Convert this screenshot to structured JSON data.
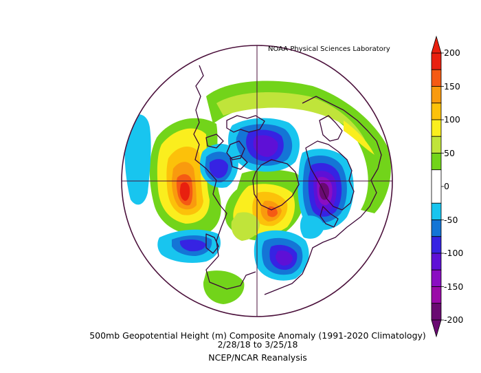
{
  "credit": "NOAA Physical Sciences Laboratory",
  "caption": {
    "line1": "500mb Geopotential Height (m) Composite Anomaly (1991-2020 Climatology)",
    "line2": "2/28/18   to 3/25/18",
    "line3": "NCEP/NCAR Reanalysis"
  },
  "colorbar": {
    "labels": [
      "200",
      "150",
      "100",
      "50",
      "0",
      "-50",
      "-100",
      "-150",
      "-200"
    ],
    "bins": [
      {
        "range": [
          175,
          200
        ],
        "color": "#e8200f"
      },
      {
        "range": [
          150,
          175
        ],
        "color": "#f55a14"
      },
      {
        "range": [
          125,
          150
        ],
        "color": "#f99a0e"
      },
      {
        "range": [
          100,
          125
        ],
        "color": "#fcc10a"
      },
      {
        "range": [
          75,
          100
        ],
        "color": "#faee1e"
      },
      {
        "range": [
          50,
          75
        ],
        "color": "#c0e43a"
      },
      {
        "range": [
          25,
          50
        ],
        "color": "#72d41a"
      },
      {
        "range": [
          -25,
          25
        ],
        "color": "#ffffff"
      },
      {
        "range": [
          -50,
          -25
        ],
        "color": "#18c5ef"
      },
      {
        "range": [
          -75,
          -50
        ],
        "color": "#1475d6"
      },
      {
        "range": [
          -100,
          -75
        ],
        "color": "#3623e3"
      },
      {
        "range": [
          -125,
          -100
        ],
        "color": "#5e10d6"
      },
      {
        "range": [
          -150,
          -125
        ],
        "color": "#8a0ec2"
      },
      {
        "range": [
          -175,
          -150
        ],
        "color": "#9a0aa8"
      },
      {
        "range": [
          -200,
          -175
        ],
        "color": "#6a0a72"
      }
    ]
  },
  "map_colors": {
    "outline": "#4a0f3a",
    "coast": "#3b0636"
  }
}
